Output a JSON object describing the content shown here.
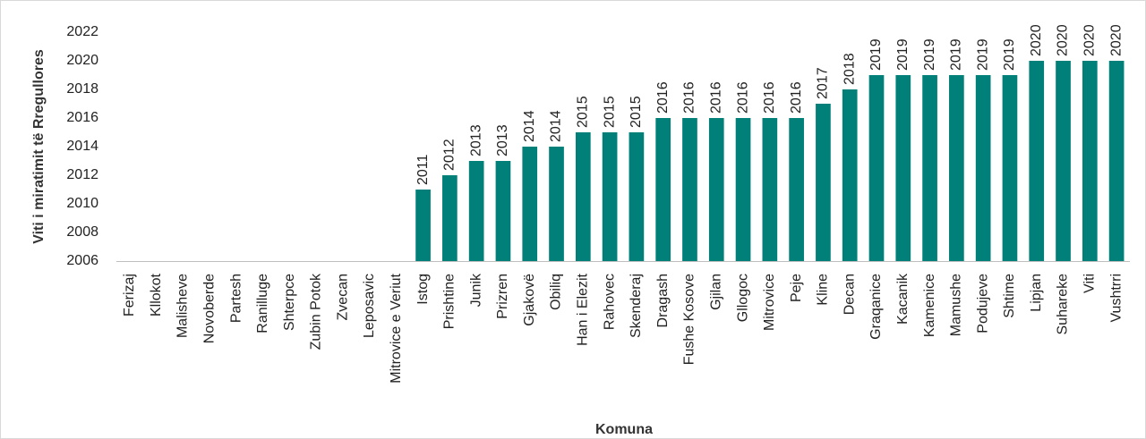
{
  "chart_data": {
    "type": "bar",
    "y_label": "Viti i miratimit të Rregullores",
    "x_label": "Komuna",
    "categories": [
      "Ferizaj",
      "Kllokot",
      "Malisheve",
      "Novoberde",
      "Partesh",
      "Ranilluge",
      "Shterpce",
      "Zubin Potok",
      "Zvecan",
      "Leposavic",
      "Mitrovice e Veriut",
      "Istog",
      "Prishtine",
      "Junik",
      "Prizren",
      "Gjakovë",
      "Obiliq",
      "Han i Elezit",
      "Rahovec",
      "Skenderaj",
      "Dragash",
      "Fushe Kosove",
      "Gjilan",
      "Gllogoc",
      "Mitrovice",
      "Peje",
      "Kline",
      "Decan",
      "Graqanice",
      "Kacanik",
      "Kamenice",
      "Mamushe",
      "Podujeve",
      "Shtime",
      "Lipjan",
      "Suhareke",
      "Viti",
      "Vushtrri"
    ],
    "values": [
      null,
      null,
      null,
      null,
      null,
      null,
      null,
      null,
      null,
      null,
      null,
      2011,
      2012,
      2013,
      2013,
      2014,
      2014,
      2015,
      2015,
      2015,
      2016,
      2016,
      2016,
      2016,
      2016,
      2016,
      2017,
      2018,
      2019,
      2019,
      2019,
      2019,
      2019,
      2019,
      2020,
      2020,
      2020,
      2020
    ],
    "color": "#008079",
    "ylim": [
      2006,
      2022
    ],
    "yticks": [
      2006,
      2008,
      2010,
      2012,
      2014,
      2016,
      2018,
      2020,
      2022
    ],
    "grid": false
  }
}
